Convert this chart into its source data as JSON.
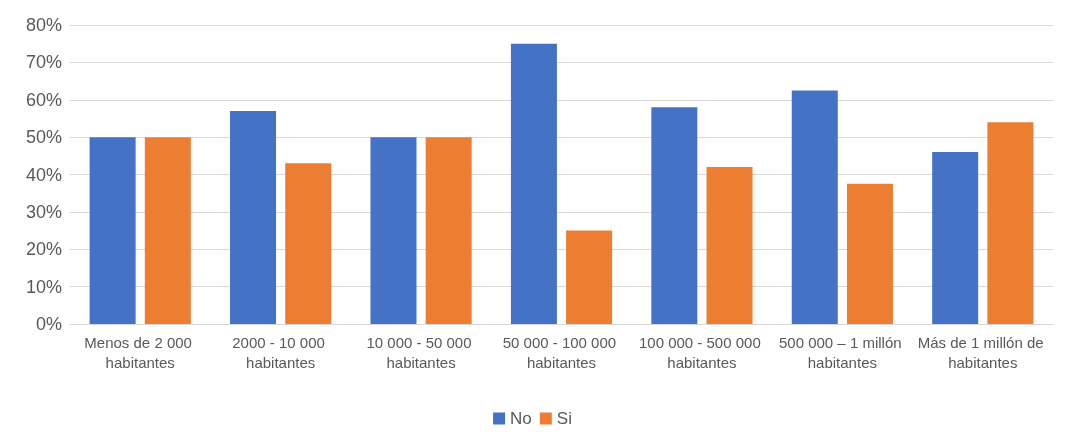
{
  "chart_data": {
    "type": "bar",
    "categories": [
      "Menos de 2 000 habitantes",
      "2000 - 10 000 habitantes",
      "10 000 - 50 000 habitantes",
      "50 000 - 100 000 habitantes",
      "100 000 - 500 000 habitantes",
      "500 000 – 1 millón habitantes",
      "Más de 1 millón de habitantes"
    ],
    "series": [
      {
        "name": "No",
        "color": "#4472c4",
        "values": [
          50,
          57,
          50,
          75,
          58,
          62.5,
          46
        ]
      },
      {
        "name": "Si",
        "color": "#ed7d31",
        "values": [
          50,
          43,
          50,
          25,
          42,
          37.5,
          54
        ]
      }
    ],
    "ylim": [
      0,
      80
    ],
    "yticks": [
      {
        "value": 0,
        "label": "0%"
      },
      {
        "value": 10,
        "label": "10%"
      },
      {
        "value": 20,
        "label": "20%"
      },
      {
        "value": 30,
        "label": "30%"
      },
      {
        "value": 40,
        "label": "40%"
      },
      {
        "value": 50,
        "label": "50%"
      },
      {
        "value": 60,
        "label": "60%"
      },
      {
        "value": 70,
        "label": "70%"
      },
      {
        "value": 80,
        "label": "80%"
      }
    ],
    "grid": "y",
    "legend": "bottom"
  }
}
